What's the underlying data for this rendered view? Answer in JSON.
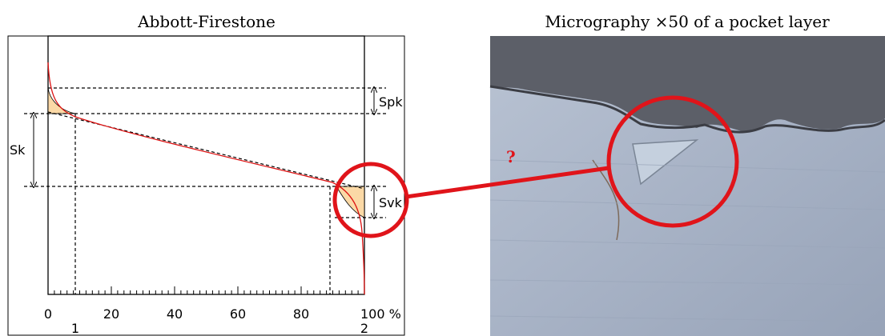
{
  "left": {
    "title": "Abbott-Firestone",
    "x_ticks": [
      "0",
      "20",
      "40",
      "60",
      "80",
      "100 %"
    ],
    "labels": {
      "sk": "Sk",
      "spk": "Spk",
      "svk": "Svk",
      "marker_1": "1",
      "marker_2": "2"
    }
  },
  "right": {
    "title": "Micrography ×50 of a pocket layer",
    "annotation": "?"
  }
}
